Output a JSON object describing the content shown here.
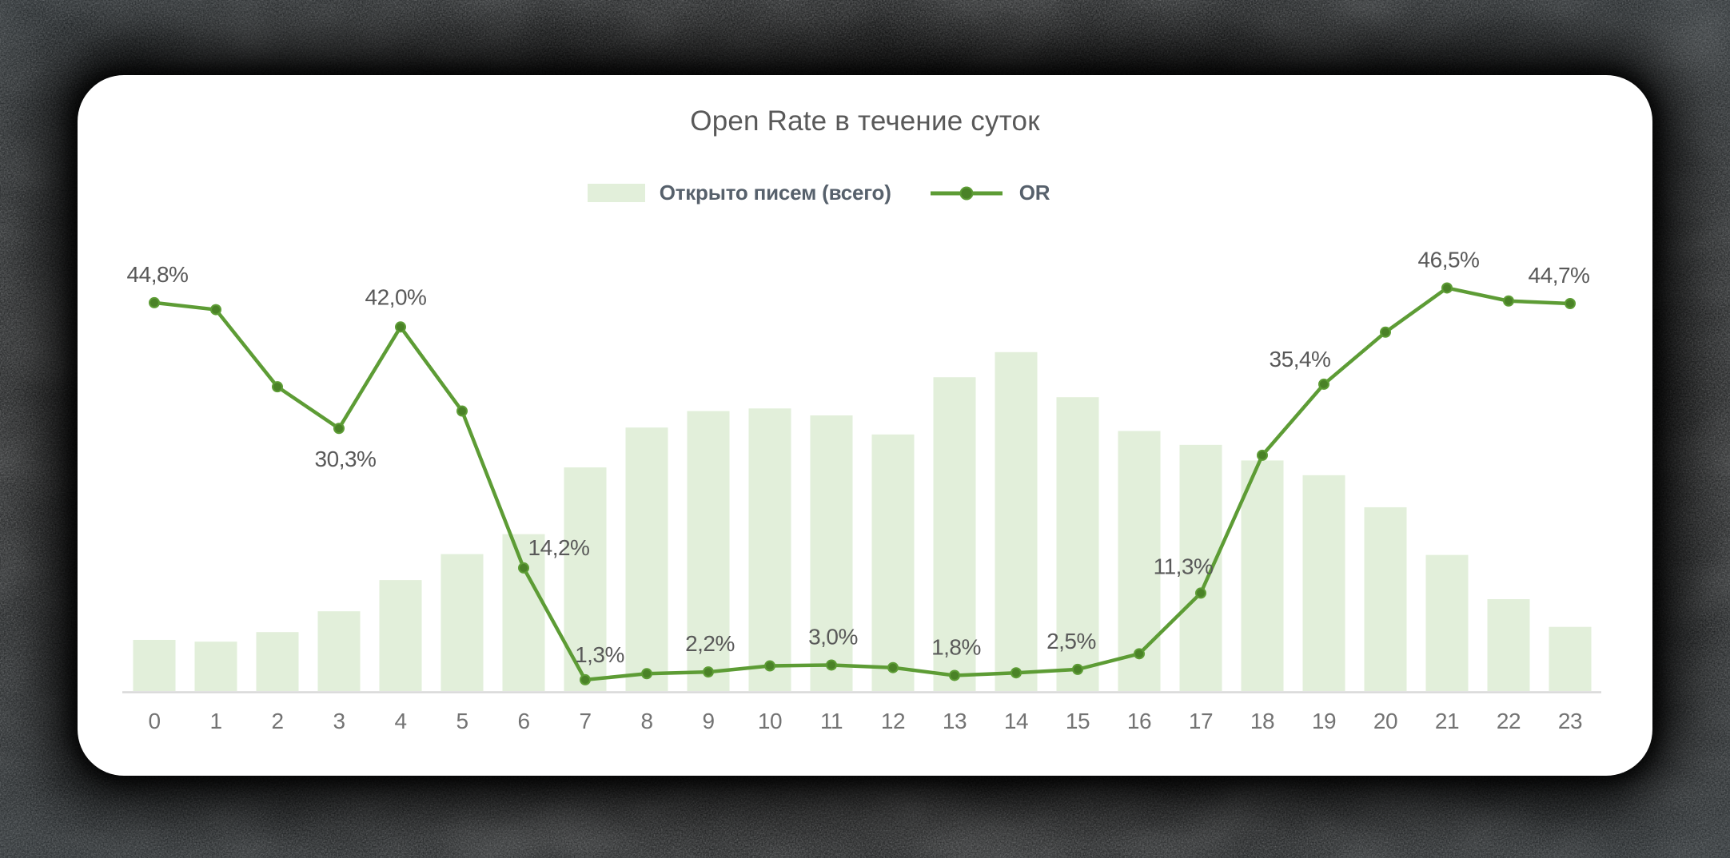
{
  "page": {
    "title": "Open Rate в течение суток"
  },
  "legend": {
    "items": [
      {
        "label": "Открыто писем (всего)",
        "symbol": "bar-swatch"
      },
      {
        "label": "OR",
        "symbol": "line-marker"
      }
    ]
  },
  "colors": {
    "bar_fill": "#e2efda",
    "line": "#5d9c35",
    "marker": "#4a8227",
    "data_label": "#595959",
    "title_text": "#595959",
    "tick_label": "#737373",
    "axis_line": "#d9d9d9",
    "card_background": "#ffffff",
    "frame_background": "#060606"
  },
  "chart_data": {
    "type": "bar+line",
    "title": "Open Rate в течение суток",
    "categories": [
      0,
      1,
      2,
      3,
      4,
      5,
      6,
      7,
      8,
      9,
      10,
      11,
      12,
      13,
      14,
      15,
      16,
      17,
      18,
      19,
      20,
      21,
      22,
      23
    ],
    "x_axis": {
      "label": "",
      "tick_labels": [
        "0",
        "1",
        "2",
        "3",
        "4",
        "5",
        "6",
        "7",
        "8",
        "9",
        "10",
        "11",
        "12",
        "13",
        "14",
        "15",
        "16",
        "17",
        "18",
        "19",
        "20",
        "21",
        "22",
        "23"
      ]
    },
    "y_axis": {
      "visible": false,
      "unit": "%",
      "ylim": [
        0,
        50
      ]
    },
    "grid": false,
    "legend_position": "top-center",
    "series": [
      {
        "name": "Открыто писем (всего)",
        "type": "bar",
        "note": "no value axis or data labels shown in image; bar heights estimated on the OR % scale",
        "values": [
          5.9,
          5.7,
          6.8,
          9.2,
          12.8,
          15.8,
          18.1,
          25.8,
          30.4,
          32.3,
          32.6,
          31.8,
          29.6,
          36.2,
          39.1,
          33.9,
          30.0,
          28.4,
          26.6,
          24.9,
          21.2,
          15.7,
          10.6,
          7.4
        ]
      },
      {
        "name": "OR",
        "type": "line",
        "unit": "%",
        "values": [
          44.8,
          44.0,
          35.1,
          30.3,
          42.0,
          32.3,
          14.2,
          1.3,
          2.0,
          2.2,
          2.9,
          3.0,
          2.7,
          1.8,
          2.1,
          2.5,
          4.3,
          11.3,
          27.2,
          35.4,
          41.4,
          46.5,
          45.0,
          44.7
        ],
        "point_labels": [
          "44,8%",
          null,
          null,
          "30,3%",
          "42,0%",
          null,
          "14,2%",
          "1,3%",
          null,
          "2,2%",
          null,
          "3,0%",
          null,
          "1,8%",
          null,
          "2,5%",
          null,
          "11,3%",
          null,
          "35,4%",
          null,
          "46,5%",
          null,
          "44,7%"
        ]
      }
    ]
  }
}
